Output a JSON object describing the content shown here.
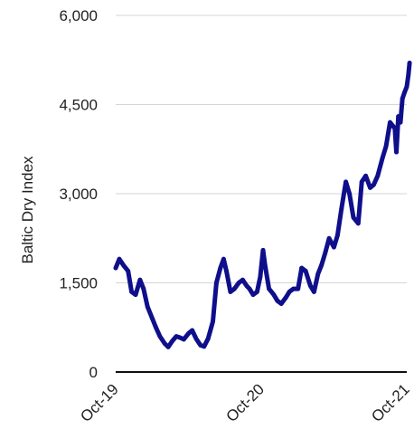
{
  "chart_data": {
    "type": "line",
    "title": "",
    "xlabel": "",
    "ylabel": "Baltic Dry Index",
    "ylim": [
      0,
      6000
    ],
    "yticks": [
      0,
      1500,
      3000,
      4500,
      6000
    ],
    "ytick_labels": [
      "0",
      "1,500",
      "3,000",
      "4,500",
      "6,000"
    ],
    "xticks": [
      "2019-10",
      "2020-10",
      "2021-10"
    ],
    "xtick_labels": [
      "Oct-19",
      "Oct-20",
      "Oct-21"
    ],
    "grid": "horizontal",
    "legend": "none",
    "series": [
      {
        "color": "#0f0f8c",
        "x": [
          "2019-10-01",
          "2019-10-10",
          "2019-10-20",
          "2019-11-01",
          "2019-11-10",
          "2019-11-20",
          "2019-12-01",
          "2019-12-10",
          "2019-12-20",
          "2020-01-01",
          "2020-01-10",
          "2020-01-20",
          "2020-02-01",
          "2020-02-10",
          "2020-02-20",
          "2020-03-01",
          "2020-03-10",
          "2020-03-20",
          "2020-04-01",
          "2020-04-10",
          "2020-04-20",
          "2020-05-01",
          "2020-05-10",
          "2020-05-20",
          "2020-06-01",
          "2020-06-10",
          "2020-06-20",
          "2020-06-28",
          "2020-07-05",
          "2020-07-15",
          "2020-07-25",
          "2020-08-05",
          "2020-08-15",
          "2020-08-25",
          "2020-09-01",
          "2020-09-10",
          "2020-09-20",
          "2020-09-28",
          "2020-10-05",
          "2020-10-10",
          "2020-10-20",
          "2020-11-01",
          "2020-11-10",
          "2020-11-20",
          "2020-12-01",
          "2020-12-10",
          "2020-12-20",
          "2021-01-01",
          "2021-01-10",
          "2021-01-20",
          "2021-02-01",
          "2021-02-10",
          "2021-02-20",
          "2021-03-01",
          "2021-03-10",
          "2021-03-20",
          "2021-04-01",
          "2021-04-10",
          "2021-04-20",
          "2021-05-01",
          "2021-05-10",
          "2021-05-20",
          "2021-06-01",
          "2021-06-10",
          "2021-06-20",
          "2021-07-01",
          "2021-07-10",
          "2021-07-20",
          "2021-08-01",
          "2021-08-10",
          "2021-08-20",
          "2021-09-01",
          "2021-09-05",
          "2021-09-10",
          "2021-09-15",
          "2021-09-20",
          "2021-09-25",
          "2021-10-01",
          "2021-10-05",
          "2021-10-08"
        ],
        "values": [
          1750,
          1900,
          1800,
          1700,
          1350,
          1300,
          1550,
          1400,
          1100,
          900,
          750,
          600,
          480,
          420,
          520,
          600,
          580,
          550,
          650,
          700,
          560,
          450,
          430,
          560,
          850,
          1500,
          1750,
          1900,
          1700,
          1350,
          1400,
          1500,
          1550,
          1450,
          1400,
          1300,
          1350,
          1600,
          2050,
          1800,
          1400,
          1300,
          1200,
          1150,
          1250,
          1350,
          1400,
          1400,
          1750,
          1700,
          1450,
          1350,
          1650,
          1800,
          2000,
          2250,
          2100,
          2300,
          2750,
          3200,
          3000,
          2600,
          2500,
          3200,
          3300,
          3100,
          3150,
          3300,
          3600,
          3800,
          4200,
          4100,
          3700,
          4300,
          4200,
          4600,
          4700,
          4800,
          5000,
          5200
        ]
      }
    ]
  }
}
